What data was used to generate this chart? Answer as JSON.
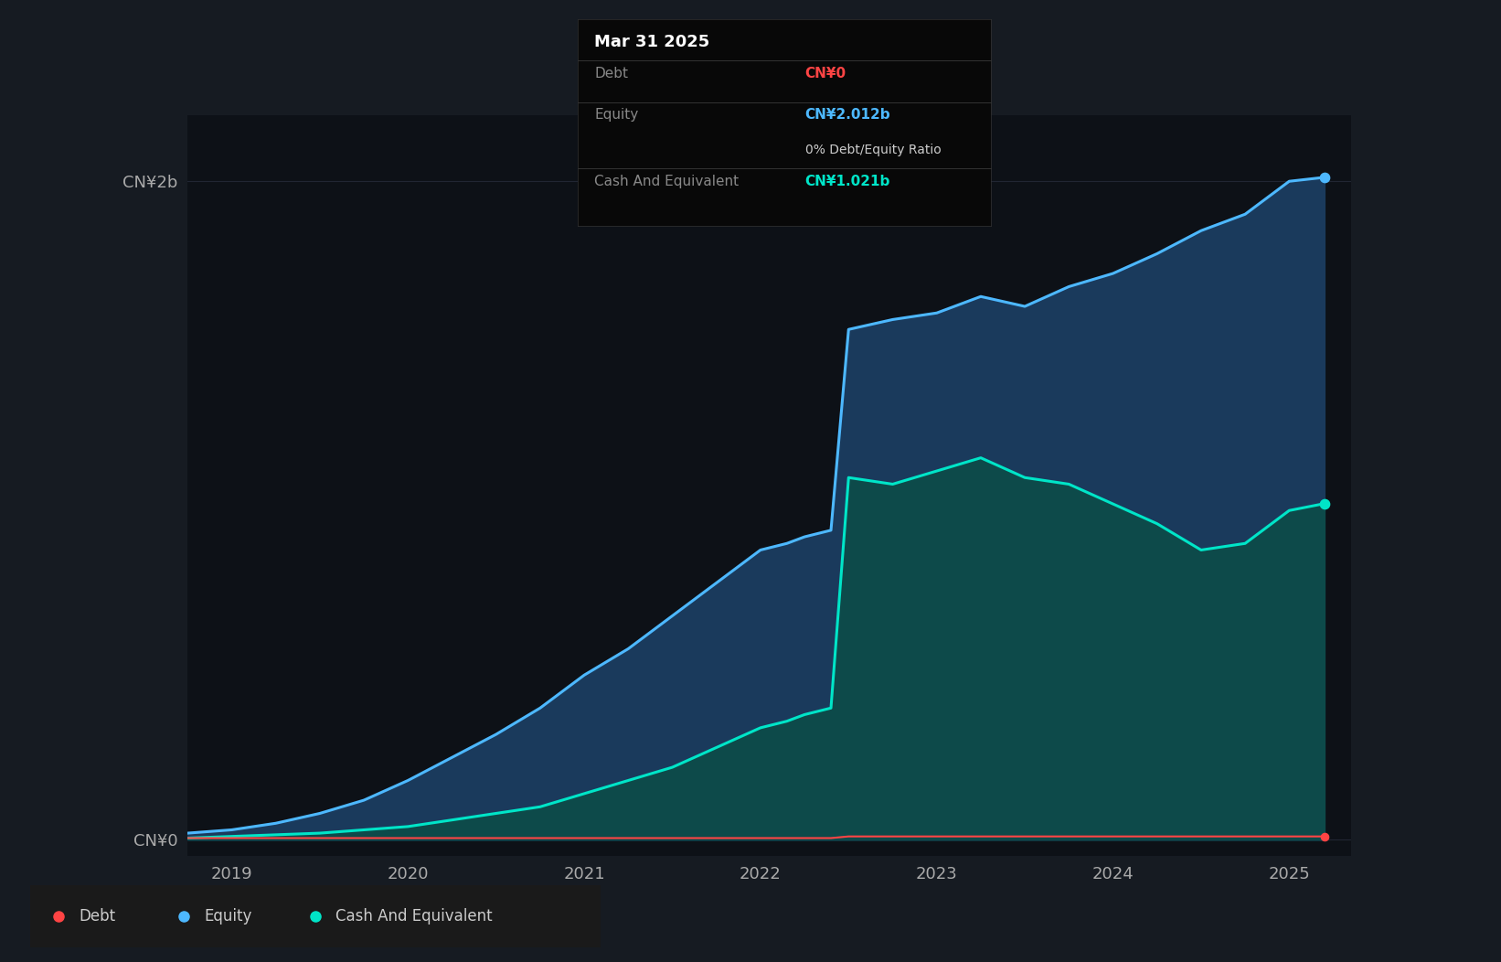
{
  "bg_color": "#161b22",
  "plot_bg_color": "#0d1117",
  "ylabel_top": "CN¥2b",
  "ylabel_bottom": "CN¥0",
  "x_ticks": [
    2019,
    2020,
    2021,
    2022,
    2023,
    2024,
    2025
  ],
  "equity_color": "#4db8ff",
  "equity_fill": "#1a3a5c",
  "cash_color": "#00e5c8",
  "cash_fill": "#0d4a4a",
  "debt_color": "#ff4444",
  "tooltip_bg": "#080808",
  "tooltip_title": "Mar 31 2025",
  "tooltip_debt_label": "Debt",
  "tooltip_debt_value": "CN¥0",
  "tooltip_debt_color": "#ff4444",
  "tooltip_equity_label": "Equity",
  "tooltip_equity_value": "CN¥2.012b",
  "tooltip_equity_color": "#4db8ff",
  "tooltip_ratio": "0% Debt/Equity Ratio",
  "tooltip_cash_label": "Cash And Equivalent",
  "tooltip_cash_value": "CN¥1.021b",
  "tooltip_cash_color": "#00e5c8",
  "grid_color": "#2a3040",
  "time_x": [
    2018.75,
    2019.0,
    2019.25,
    2019.5,
    2019.75,
    2020.0,
    2020.25,
    2020.5,
    2020.75,
    2021.0,
    2021.25,
    2021.5,
    2021.75,
    2022.0,
    2022.15,
    2022.25,
    2022.4,
    2022.5,
    2022.75,
    2023.0,
    2023.25,
    2023.5,
    2023.75,
    2024.0,
    2024.25,
    2024.5,
    2024.75,
    2025.0,
    2025.2
  ],
  "equity_y": [
    0.02,
    0.03,
    0.05,
    0.08,
    0.12,
    0.18,
    0.25,
    0.32,
    0.4,
    0.5,
    0.58,
    0.68,
    0.78,
    0.88,
    0.9,
    0.92,
    0.94,
    1.55,
    1.58,
    1.6,
    1.65,
    1.62,
    1.68,
    1.72,
    1.78,
    1.85,
    1.9,
    2.0,
    2.012
  ],
  "cash_y": [
    0.005,
    0.01,
    0.015,
    0.02,
    0.03,
    0.04,
    0.06,
    0.08,
    0.1,
    0.14,
    0.18,
    0.22,
    0.28,
    0.34,
    0.36,
    0.38,
    0.4,
    1.1,
    1.08,
    1.12,
    1.16,
    1.1,
    1.08,
    1.02,
    0.96,
    0.88,
    0.9,
    1.0,
    1.021
  ],
  "debt_y": [
    0.005,
    0.005,
    0.005,
    0.005,
    0.005,
    0.005,
    0.005,
    0.005,
    0.005,
    0.005,
    0.005,
    0.005,
    0.005,
    0.005,
    0.005,
    0.005,
    0.005,
    0.01,
    0.01,
    0.01,
    0.01,
    0.01,
    0.01,
    0.01,
    0.01,
    0.01,
    0.01,
    0.01,
    0.01
  ],
  "ymax": 2.2
}
